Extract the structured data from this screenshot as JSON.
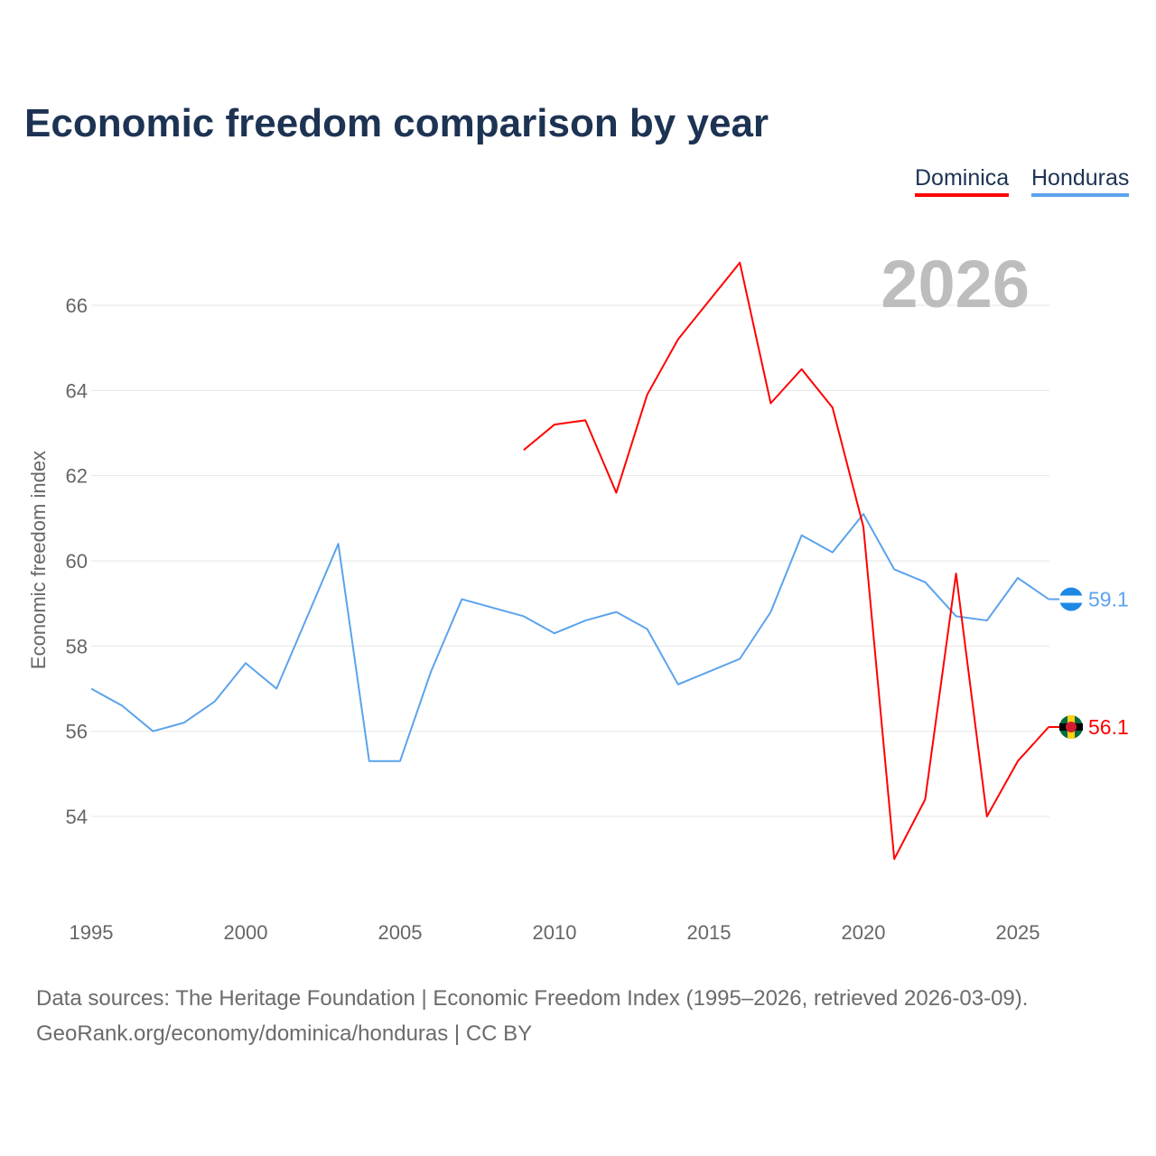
{
  "chart_data": {
    "type": "line",
    "title": "Economic freedom comparison by year",
    "xlabel": "",
    "ylabel": "Economic freedom index",
    "xlim": [
      1995,
      2026
    ],
    "ylim": [
      52,
      67.5
    ],
    "x_ticks": [
      1995,
      2000,
      2005,
      2010,
      2015,
      2020,
      2025
    ],
    "y_ticks": [
      54,
      56,
      58,
      60,
      62,
      64,
      66
    ],
    "grid": true,
    "legend_position": "top-right",
    "year_watermark": "2026",
    "series": [
      {
        "name": "Dominica",
        "color": "#ff0000",
        "end_label": "56.1",
        "flag": "dominica-flag",
        "x": [
          2009,
          2010,
          2011,
          2012,
          2013,
          2014,
          2015,
          2016,
          2017,
          2018,
          2019,
          2020,
          2021,
          2022,
          2023,
          2024,
          2025,
          2026
        ],
        "values": [
          62.6,
          63.2,
          63.3,
          61.6,
          63.9,
          65.2,
          66.1,
          67.0,
          63.7,
          64.5,
          63.6,
          60.8,
          53.0,
          54.4,
          59.7,
          54.0,
          55.3,
          56.1
        ]
      },
      {
        "name": "Honduras",
        "color": "#5ba3ec",
        "end_label": "59.1",
        "flag": "honduras-flag",
        "x": [
          1995,
          1996,
          1997,
          1998,
          1999,
          2000,
          2001,
          2002,
          2003,
          2004,
          2005,
          2006,
          2007,
          2008,
          2009,
          2010,
          2011,
          2012,
          2013,
          2014,
          2015,
          2016,
          2017,
          2018,
          2019,
          2020,
          2021,
          2022,
          2023,
          2024,
          2025,
          2026
        ],
        "values": [
          57.0,
          56.6,
          56.0,
          56.2,
          56.7,
          57.6,
          57.0,
          58.7,
          60.4,
          55.3,
          55.3,
          57.4,
          59.1,
          58.9,
          58.7,
          58.3,
          58.6,
          58.8,
          58.4,
          57.1,
          57.4,
          57.7,
          58.8,
          60.6,
          60.2,
          61.1,
          59.8,
          59.5,
          58.7,
          58.6,
          59.6,
          59.1
        ]
      }
    ]
  },
  "footer": {
    "line1": "Data sources: The Heritage Foundation | Economic Freedom Index (1995–2026, retrieved 2026-03-09).",
    "line2": "GeoRank.org/economy/dominica/honduras | CC BY"
  }
}
